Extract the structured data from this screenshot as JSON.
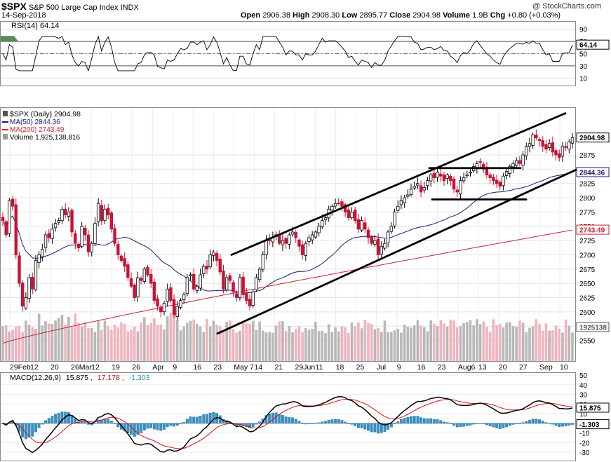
{
  "header": {
    "symbol": "$SPX",
    "name": "S&P 500 Large Cap Index",
    "exchange": "INDX",
    "watermark": "@ StockCharts.com",
    "date": "14-Sep-2018",
    "open_label": "Open",
    "open": "2906.38",
    "high_label": "High",
    "high": "2908.30",
    "low_label": "Low",
    "low": "2895.77",
    "close_label": "Close",
    "close": "2904.98",
    "volume_label": "Volume",
    "volume": "1.9B",
    "chg_label": "Chg",
    "chg": "+0.80 (+0.03%)"
  },
  "rsi_panel": {
    "title": "RSI(14) 64.14",
    "value_badge": "64.14",
    "axis": [
      "90",
      "70",
      "50",
      "30",
      "10"
    ]
  },
  "price_panel": {
    "legend": [
      {
        "text": "$SPX (Daily) 2904.98",
        "color": "#000000"
      },
      {
        "text": "MA(50) 2844.36",
        "color": "#1a1a7a"
      },
      {
        "text": "MA(200) 2743.49",
        "color": "#cc2233"
      },
      {
        "text": "Volume 1,925,138,816",
        "color": "#000000"
      }
    ],
    "axis": [
      "2875",
      "2850",
      "2825",
      "2800",
      "2775",
      "2750",
      "2725",
      "2700",
      "2675",
      "2650",
      "2625",
      "2600",
      "2575",
      "2550"
    ],
    "badges": {
      "close": "2904.98",
      "ma50": "2844.36",
      "ma200": "2743.49",
      "volume": "1925138"
    }
  },
  "x_axis": [
    "29Feb",
    "12",
    "20",
    "26Mar",
    "12",
    "19",
    "26",
    "Apr",
    "9",
    "16",
    "23",
    "May 7",
    "14",
    "21",
    "29Jun",
    "11",
    "18",
    "25",
    "Jul",
    "9",
    "16",
    "23",
    "Aug6",
    "13",
    "20",
    "27",
    "Sep",
    "10"
  ],
  "macd_panel": {
    "title_prefix": "MACD(12,26,9)",
    "macd": "15.875",
    "signal": "17.178",
    "hist": "-1.303",
    "axis": [
      "50",
      "40",
      "30",
      "20",
      "10",
      "0",
      "-10",
      "-20",
      "-30"
    ],
    "badges": {
      "macd": "15.875",
      "hist": "-1.303"
    }
  },
  "colors": {
    "up": "#000000",
    "down": "#cc1133",
    "ma50": "#1a1a7a",
    "ma200": "#cc2233",
    "vol_up": "#b8b8b8",
    "vol_down": "#f0b3bd",
    "macd_line": "#000000",
    "signal_line": "#dd1111",
    "hist": "#3a8fc0",
    "rsi_fill": "#5a8a55"
  },
  "chart_data": {
    "type": "candlestick",
    "title": "$SPX S&P 500 Large Cap Index INDX",
    "ylim": [
      2520,
      2950
    ],
    "closes": [
      2760,
      2735,
      2795,
      2785,
      2700,
      2650,
      2610,
      2625,
      2660,
      2640,
      2690,
      2700,
      2710,
      2735,
      2730,
      2745,
      2755,
      2760,
      2780,
      2770,
      2775,
      2740,
      2720,
      2712,
      2750,
      2735,
      2705,
      2720,
      2755,
      2790,
      2760,
      2780,
      2770,
      2745,
      2720,
      2700,
      2690,
      2680,
      2660,
      2645,
      2625,
      2660,
      2655,
      2675,
      2665,
      2650,
      2620,
      2610,
      2600,
      2615,
      2640,
      2620,
      2595,
      2610,
      2620,
      2630,
      2660,
      2665,
      2640,
      2645,
      2665,
      2680,
      2675,
      2700,
      2705,
      2690,
      2670,
      2640,
      2660,
      2655,
      2635,
      2625,
      2660,
      2630,
      2620,
      2610,
      2635,
      2660,
      2675,
      2700,
      2725,
      2725,
      2730,
      2735,
      2720,
      2725,
      2720,
      2735,
      2740,
      2730,
      2715,
      2700,
      2720,
      2730,
      2735,
      2740,
      2750,
      2760,
      2765,
      2780,
      2785,
      2790,
      2790,
      2785,
      2775,
      2765,
      2775,
      2760,
      2745,
      2760,
      2745,
      2730,
      2720,
      2725,
      2700,
      2715,
      2720,
      2740,
      2750,
      2775,
      2785,
      2795,
      2800,
      2805,
      2815,
      2820,
      2825,
      2810,
      2818,
      2830,
      2840,
      2835,
      2845,
      2838,
      2830,
      2840,
      2830,
      2815,
      2810,
      2830,
      2835,
      2840,
      2845,
      2855,
      2860,
      2862,
      2850,
      2840,
      2835,
      2830,
      2825,
      2820,
      2838,
      2846,
      2855,
      2860,
      2865,
      2860,
      2875,
      2890,
      2895,
      2910,
      2905,
      2900,
      2890,
      2885,
      2895,
      2880,
      2875,
      2870,
      2890,
      2888,
      2898,
      2905
    ],
    "ma50_end": 2844.36,
    "ma200_end": 2743.49,
    "rsi_last": 64.14,
    "volume_last": 1925138816,
    "macd_last": 15.875,
    "signal_last": 17.178,
    "hist_last": -1.303,
    "macd_ylim": [
      -35,
      50
    ],
    "rsi_ylim": [
      0,
      100
    ],
    "trendlines": [
      {
        "from": [
          "May 1",
          2700
        ],
        "to": [
          "Sep 14",
          2948
        ]
      },
      {
        "from": [
          "Apr 23",
          2562
        ],
        "to": [
          "Sep 14",
          2850
        ]
      },
      {
        "from": [
          "Jul 20",
          2852
        ],
        "to": [
          "Aug 24",
          2852
        ]
      },
      {
        "from": [
          "Jul 20",
          2797
        ],
        "to": [
          "Aug 31",
          2797
        ]
      }
    ]
  }
}
